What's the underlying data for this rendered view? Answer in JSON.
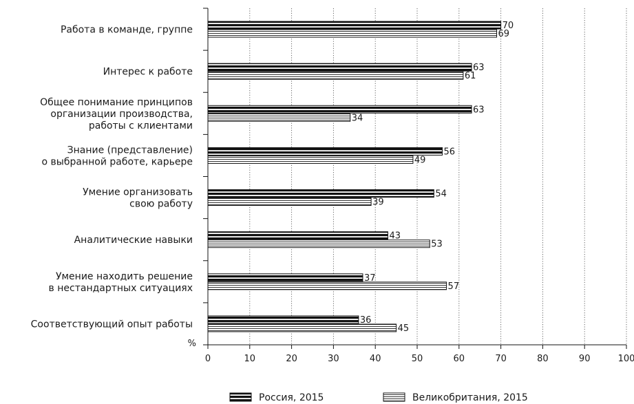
{
  "chart_data": {
    "type": "bar",
    "orientation": "horizontal",
    "categories": [
      [
        "Работа в команде, группе"
      ],
      [
        "Интерес к работе"
      ],
      [
        "Общее понимание принципов",
        "организации производства,",
        "работы с клиентами"
      ],
      [
        "Знание (представление)",
        "о выбранной работе, карьере"
      ],
      [
        "Умение организовать",
        "свою работу"
      ],
      [
        "Аналитические навыки"
      ],
      [
        "Умение находить решение",
        "в нестандартных ситуациях"
      ],
      [
        "Соответствующий опыт работы"
      ]
    ],
    "series": [
      {
        "name": "Россия, 2015",
        "values": [
          70,
          63,
          63,
          56,
          54,
          43,
          37,
          36
        ],
        "pattern": "dark-striped"
      },
      {
        "name": "Великобритания, 2015",
        "values": [
          69,
          61,
          34,
          49,
          39,
          53,
          57,
          45
        ],
        "pattern": "light-striped"
      }
    ],
    "value_labels": [
      [
        "70",
        "63",
        "63",
        "56",
        "54",
        "43",
        "37",
        "36"
      ],
      [
        "69",
        "61",
        "34",
        "49",
        "39",
        "53",
        "57",
        "45"
      ]
    ],
    "xlim": [
      0,
      100
    ],
    "xticks": [
      "0",
      "10",
      "20",
      "30",
      "40",
      "50",
      "60",
      "70",
      "80",
      "90",
      "100"
    ],
    "xlabel": "%",
    "grid": "vertical-dotted",
    "legend": "bottom"
  }
}
